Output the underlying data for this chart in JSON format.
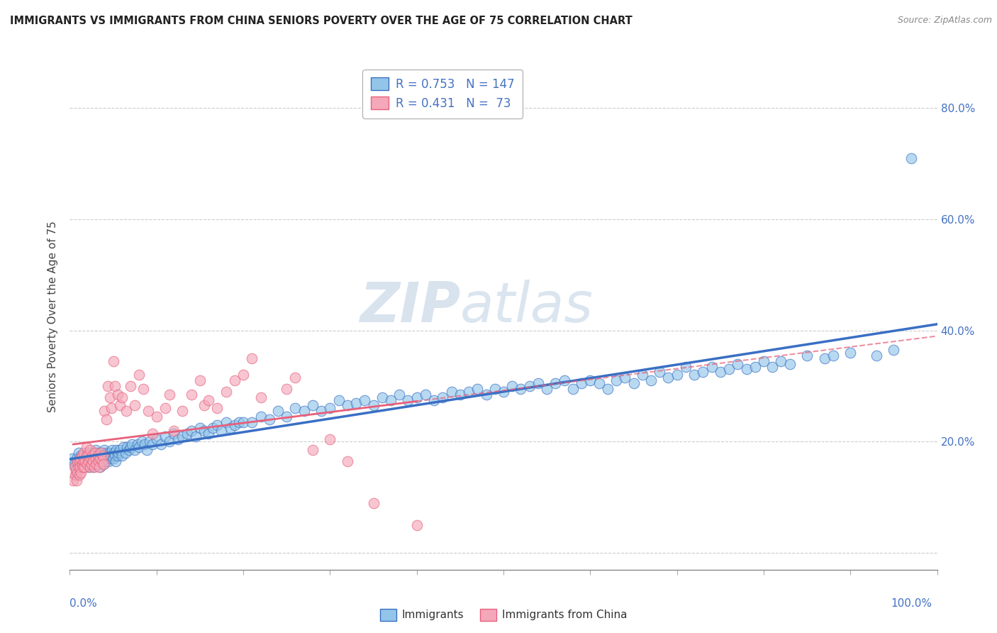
{
  "title": "IMMIGRANTS VS IMMIGRANTS FROM CHINA SENIORS POVERTY OVER THE AGE OF 75 CORRELATION CHART",
  "source": "Source: ZipAtlas.com",
  "ylabel": "Seniors Poverty Over the Age of 75",
  "ytick_positions": [
    0.0,
    0.2,
    0.4,
    0.6,
    0.8
  ],
  "ytick_labels_right": [
    "",
    "20.0%",
    "40.0%",
    "60.0%",
    "80.0%"
  ],
  "xlim": [
    0.0,
    1.0
  ],
  "ylim": [
    -0.03,
    0.88
  ],
  "color_immigrants": "#92C5E8",
  "color_china": "#F4A8BA",
  "color_immigrants_line": "#3A6FC4",
  "color_china_line": "#E8607A",
  "title_fontsize": 10.5,
  "watermark_zip": "ZIP",
  "watermark_atlas": "atlas",
  "scatter_immigrants": [
    [
      0.003,
      0.17
    ],
    [
      0.005,
      0.16
    ],
    [
      0.006,
      0.155
    ],
    [
      0.007,
      0.14
    ],
    [
      0.008,
      0.15
    ],
    [
      0.008,
      0.17
    ],
    [
      0.009,
      0.16
    ],
    [
      0.01,
      0.15
    ],
    [
      0.01,
      0.18
    ],
    [
      0.011,
      0.155
    ],
    [
      0.012,
      0.165
    ],
    [
      0.013,
      0.16
    ],
    [
      0.013,
      0.175
    ],
    [
      0.014,
      0.155
    ],
    [
      0.015,
      0.165
    ],
    [
      0.015,
      0.175
    ],
    [
      0.016,
      0.16
    ],
    [
      0.017,
      0.17
    ],
    [
      0.017,
      0.155
    ],
    [
      0.018,
      0.165
    ],
    [
      0.019,
      0.175
    ],
    [
      0.02,
      0.16
    ],
    [
      0.02,
      0.18
    ],
    [
      0.021,
      0.165
    ],
    [
      0.022,
      0.155
    ],
    [
      0.022,
      0.175
    ],
    [
      0.023,
      0.17
    ],
    [
      0.024,
      0.16
    ],
    [
      0.025,
      0.165
    ],
    [
      0.025,
      0.18
    ],
    [
      0.026,
      0.17
    ],
    [
      0.027,
      0.155
    ],
    [
      0.028,
      0.175
    ],
    [
      0.028,
      0.165
    ],
    [
      0.029,
      0.16
    ],
    [
      0.03,
      0.17
    ],
    [
      0.03,
      0.185
    ],
    [
      0.031,
      0.165
    ],
    [
      0.032,
      0.175
    ],
    [
      0.033,
      0.16
    ],
    [
      0.033,
      0.18
    ],
    [
      0.034,
      0.17
    ],
    [
      0.035,
      0.155
    ],
    [
      0.035,
      0.175
    ],
    [
      0.036,
      0.165
    ],
    [
      0.037,
      0.18
    ],
    [
      0.038,
      0.17
    ],
    [
      0.039,
      0.16
    ],
    [
      0.04,
      0.175
    ],
    [
      0.04,
      0.185
    ],
    [
      0.041,
      0.165
    ],
    [
      0.042,
      0.17
    ],
    [
      0.043,
      0.18
    ],
    [
      0.044,
      0.175
    ],
    [
      0.045,
      0.165
    ],
    [
      0.046,
      0.18
    ],
    [
      0.047,
      0.17
    ],
    [
      0.048,
      0.175
    ],
    [
      0.049,
      0.185
    ],
    [
      0.05,
      0.17
    ],
    [
      0.051,
      0.18
    ],
    [
      0.052,
      0.175
    ],
    [
      0.053,
      0.165
    ],
    [
      0.054,
      0.185
    ],
    [
      0.055,
      0.175
    ],
    [
      0.056,
      0.18
    ],
    [
      0.058,
      0.185
    ],
    [
      0.06,
      0.175
    ],
    [
      0.062,
      0.19
    ],
    [
      0.064,
      0.18
    ],
    [
      0.066,
      0.19
    ],
    [
      0.068,
      0.185
    ],
    [
      0.07,
      0.19
    ],
    [
      0.072,
      0.195
    ],
    [
      0.075,
      0.185
    ],
    [
      0.078,
      0.195
    ],
    [
      0.08,
      0.19
    ],
    [
      0.083,
      0.2
    ],
    [
      0.086,
      0.195
    ],
    [
      0.089,
      0.185
    ],
    [
      0.092,
      0.2
    ],
    [
      0.095,
      0.195
    ],
    [
      0.1,
      0.205
    ],
    [
      0.105,
      0.195
    ],
    [
      0.11,
      0.21
    ],
    [
      0.115,
      0.2
    ],
    [
      0.12,
      0.215
    ],
    [
      0.125,
      0.205
    ],
    [
      0.13,
      0.21
    ],
    [
      0.135,
      0.215
    ],
    [
      0.14,
      0.22
    ],
    [
      0.145,
      0.21
    ],
    [
      0.15,
      0.225
    ],
    [
      0.155,
      0.22
    ],
    [
      0.16,
      0.215
    ],
    [
      0.165,
      0.225
    ],
    [
      0.17,
      0.23
    ],
    [
      0.175,
      0.22
    ],
    [
      0.18,
      0.235
    ],
    [
      0.185,
      0.225
    ],
    [
      0.19,
      0.23
    ],
    [
      0.195,
      0.235
    ],
    [
      0.2,
      0.235
    ],
    [
      0.21,
      0.235
    ],
    [
      0.22,
      0.245
    ],
    [
      0.23,
      0.24
    ],
    [
      0.24,
      0.255
    ],
    [
      0.25,
      0.245
    ],
    [
      0.26,
      0.26
    ],
    [
      0.27,
      0.255
    ],
    [
      0.28,
      0.265
    ],
    [
      0.29,
      0.255
    ],
    [
      0.3,
      0.26
    ],
    [
      0.31,
      0.275
    ],
    [
      0.32,
      0.265
    ],
    [
      0.33,
      0.27
    ],
    [
      0.34,
      0.275
    ],
    [
      0.35,
      0.265
    ],
    [
      0.36,
      0.28
    ],
    [
      0.37,
      0.275
    ],
    [
      0.38,
      0.285
    ],
    [
      0.39,
      0.275
    ],
    [
      0.4,
      0.28
    ],
    [
      0.41,
      0.285
    ],
    [
      0.42,
      0.275
    ],
    [
      0.43,
      0.28
    ],
    [
      0.44,
      0.29
    ],
    [
      0.45,
      0.285
    ],
    [
      0.46,
      0.29
    ],
    [
      0.47,
      0.295
    ],
    [
      0.48,
      0.285
    ],
    [
      0.49,
      0.295
    ],
    [
      0.5,
      0.29
    ],
    [
      0.51,
      0.3
    ],
    [
      0.52,
      0.295
    ],
    [
      0.53,
      0.3
    ],
    [
      0.54,
      0.305
    ],
    [
      0.55,
      0.295
    ],
    [
      0.56,
      0.305
    ],
    [
      0.57,
      0.31
    ],
    [
      0.58,
      0.295
    ],
    [
      0.59,
      0.305
    ],
    [
      0.6,
      0.31
    ],
    [
      0.61,
      0.305
    ],
    [
      0.62,
      0.295
    ],
    [
      0.63,
      0.31
    ],
    [
      0.64,
      0.315
    ],
    [
      0.65,
      0.305
    ],
    [
      0.66,
      0.32
    ],
    [
      0.67,
      0.31
    ],
    [
      0.68,
      0.325
    ],
    [
      0.69,
      0.315
    ],
    [
      0.7,
      0.32
    ],
    [
      0.71,
      0.335
    ],
    [
      0.72,
      0.32
    ],
    [
      0.73,
      0.325
    ],
    [
      0.74,
      0.335
    ],
    [
      0.75,
      0.325
    ],
    [
      0.76,
      0.33
    ],
    [
      0.77,
      0.34
    ],
    [
      0.78,
      0.33
    ],
    [
      0.79,
      0.335
    ],
    [
      0.8,
      0.345
    ],
    [
      0.81,
      0.335
    ],
    [
      0.82,
      0.345
    ],
    [
      0.83,
      0.34
    ],
    [
      0.85,
      0.355
    ],
    [
      0.87,
      0.35
    ],
    [
      0.88,
      0.355
    ],
    [
      0.9,
      0.36
    ],
    [
      0.93,
      0.355
    ],
    [
      0.95,
      0.365
    ],
    [
      0.97,
      0.71
    ]
  ],
  "scatter_china": [
    [
      0.004,
      0.13
    ],
    [
      0.005,
      0.155
    ],
    [
      0.006,
      0.14
    ],
    [
      0.007,
      0.15
    ],
    [
      0.008,
      0.13
    ],
    [
      0.009,
      0.145
    ],
    [
      0.009,
      0.165
    ],
    [
      0.01,
      0.155
    ],
    [
      0.011,
      0.14
    ],
    [
      0.011,
      0.165
    ],
    [
      0.012,
      0.155
    ],
    [
      0.012,
      0.17
    ],
    [
      0.013,
      0.145
    ],
    [
      0.014,
      0.16
    ],
    [
      0.014,
      0.175
    ],
    [
      0.015,
      0.155
    ],
    [
      0.016,
      0.165
    ],
    [
      0.016,
      0.18
    ],
    [
      0.017,
      0.155
    ],
    [
      0.018,
      0.165
    ],
    [
      0.019,
      0.175
    ],
    [
      0.019,
      0.19
    ],
    [
      0.02,
      0.16
    ],
    [
      0.021,
      0.175
    ],
    [
      0.022,
      0.165
    ],
    [
      0.023,
      0.155
    ],
    [
      0.023,
      0.185
    ],
    [
      0.024,
      0.17
    ],
    [
      0.025,
      0.16
    ],
    [
      0.026,
      0.175
    ],
    [
      0.027,
      0.165
    ],
    [
      0.028,
      0.155
    ],
    [
      0.029,
      0.18
    ],
    [
      0.03,
      0.17
    ],
    [
      0.031,
      0.16
    ],
    [
      0.032,
      0.175
    ],
    [
      0.033,
      0.165
    ],
    [
      0.034,
      0.155
    ],
    [
      0.035,
      0.17
    ],
    [
      0.036,
      0.18
    ],
    [
      0.037,
      0.165
    ],
    [
      0.038,
      0.175
    ],
    [
      0.039,
      0.16
    ],
    [
      0.04,
      0.255
    ],
    [
      0.042,
      0.24
    ],
    [
      0.044,
      0.3
    ],
    [
      0.046,
      0.28
    ],
    [
      0.048,
      0.26
    ],
    [
      0.05,
      0.345
    ],
    [
      0.052,
      0.3
    ],
    [
      0.055,
      0.285
    ],
    [
      0.058,
      0.265
    ],
    [
      0.06,
      0.28
    ],
    [
      0.065,
      0.255
    ],
    [
      0.07,
      0.3
    ],
    [
      0.075,
      0.265
    ],
    [
      0.08,
      0.32
    ],
    [
      0.085,
      0.295
    ],
    [
      0.09,
      0.255
    ],
    [
      0.095,
      0.215
    ],
    [
      0.1,
      0.245
    ],
    [
      0.11,
      0.26
    ],
    [
      0.115,
      0.285
    ],
    [
      0.12,
      0.22
    ],
    [
      0.13,
      0.255
    ],
    [
      0.14,
      0.285
    ],
    [
      0.15,
      0.31
    ],
    [
      0.155,
      0.265
    ],
    [
      0.16,
      0.275
    ],
    [
      0.17,
      0.26
    ],
    [
      0.18,
      0.29
    ],
    [
      0.19,
      0.31
    ],
    [
      0.2,
      0.32
    ],
    [
      0.21,
      0.35
    ],
    [
      0.22,
      0.28
    ],
    [
      0.25,
      0.295
    ],
    [
      0.26,
      0.315
    ],
    [
      0.28,
      0.185
    ],
    [
      0.3,
      0.205
    ],
    [
      0.32,
      0.165
    ],
    [
      0.35,
      0.09
    ],
    [
      0.4,
      0.05
    ]
  ],
  "bg_color": "#FFFFFF"
}
